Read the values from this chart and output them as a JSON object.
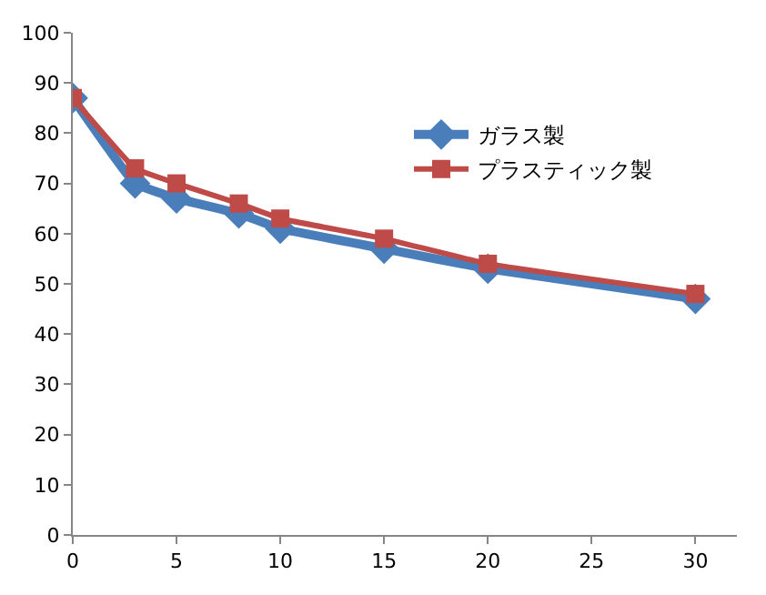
{
  "chart_data": {
    "type": "line",
    "x": [
      0,
      3,
      5,
      8,
      10,
      15,
      20,
      30
    ],
    "series": [
      {
        "name": "ガラス製",
        "color": "#4a7ebb",
        "marker": "diamond",
        "values": [
          87,
          70,
          67,
          64,
          61,
          57,
          53,
          47
        ]
      },
      {
        "name": "プラスティック製",
        "color": "#be4b48",
        "marker": "square",
        "values": [
          87,
          73,
          70,
          66,
          63,
          59,
          54,
          48
        ]
      }
    ],
    "xlim": [
      0,
      32
    ],
    "xticks": [
      0,
      5,
      10,
      15,
      20,
      25,
      30
    ],
    "ylim": [
      0,
      100
    ],
    "yticks": [
      0,
      10,
      20,
      30,
      40,
      50,
      60,
      70,
      80,
      90,
      100
    ],
    "grid": false,
    "legend": "top right",
    "line_style": "solid"
  }
}
